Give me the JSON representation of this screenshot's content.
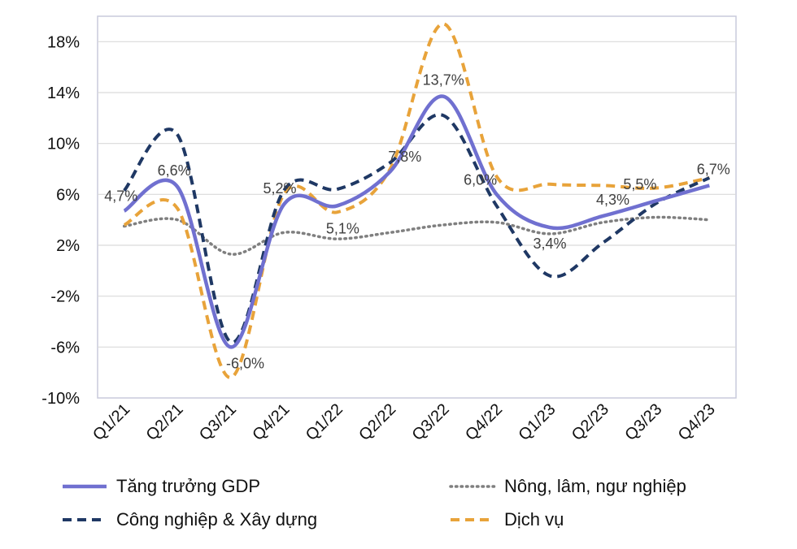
{
  "chart_data": {
    "type": "line",
    "title": "",
    "xlabel": "",
    "ylabel": "",
    "categories": [
      "Q1/21",
      "Q2/21",
      "Q3/21",
      "Q4/21",
      "Q1/22",
      "Q2/22",
      "Q3/22",
      "Q4/22",
      "Q1/23",
      "Q2/23",
      "Q3/23",
      "Q4/23"
    ],
    "ylim": [
      -10,
      20
    ],
    "yticks": [
      -10,
      -6,
      -2,
      2,
      6,
      10,
      14,
      18
    ],
    "ytick_labels": [
      "-10%",
      "-6%",
      "-2%",
      "2%",
      "6%",
      "10%",
      "14%",
      "18%"
    ],
    "grid": true,
    "legend_position": "bottom",
    "series": [
      {
        "name": "Tăng trưởng GDP",
        "style": "solid",
        "color": "#7070d0",
        "values": [
          4.7,
          6.6,
          -6.0,
          5.2,
          5.1,
          7.8,
          13.7,
          6.0,
          3.4,
          4.3,
          5.5,
          6.7
        ],
        "labels": [
          "4,7%",
          "6,6%",
          "-6,0%",
          "5,2%",
          "5,1%",
          "7,8%",
          "13,7%",
          "6,0%",
          "3,4%",
          "4,3%",
          "5,5%",
          "6,7%"
        ]
      },
      {
        "name": "Nông, lâm, ngư nghiệp",
        "style": "dotted",
        "color": "#7f7f7f",
        "values": [
          3.5,
          4.0,
          1.3,
          3.0,
          2.5,
          3.0,
          3.6,
          3.8,
          2.9,
          3.8,
          4.2,
          4.0
        ]
      },
      {
        "name": "Công nghiệp & Xây dựng",
        "style": "dashed",
        "color": "#1f3864",
        "values": [
          6.3,
          10.7,
          -5.6,
          6.3,
          6.4,
          8.5,
          12.2,
          5.1,
          -0.4,
          2.2,
          5.3,
          7.3
        ]
      },
      {
        "name": "Dịch vụ",
        "style": "dashed",
        "color": "#e8a33a",
        "values": [
          3.6,
          4.9,
          -8.4,
          6.0,
          4.6,
          8.0,
          19.4,
          7.4,
          6.8,
          6.7,
          6.5,
          7.3
        ]
      }
    ]
  }
}
